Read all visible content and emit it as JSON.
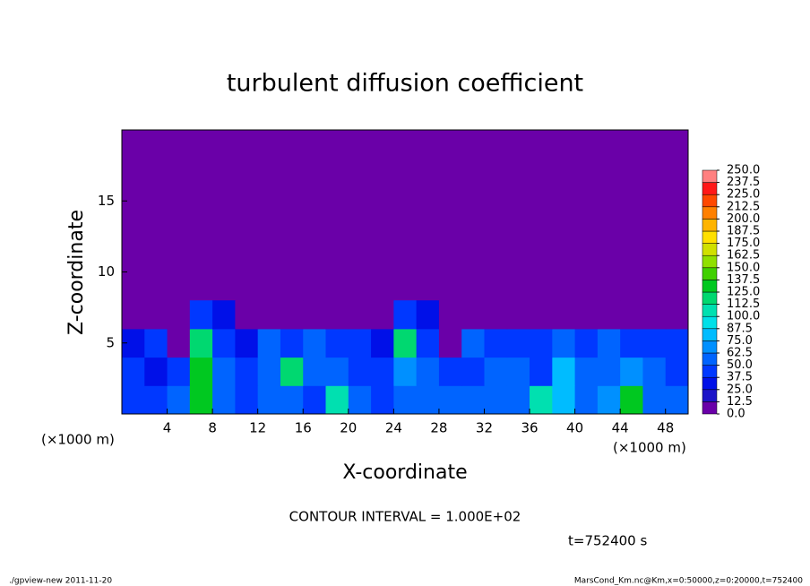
{
  "chart_data": {
    "type": "contour",
    "title": "turbulent diffusion coefficient",
    "x_label": "X-coordinate",
    "y_label": "Z-coordinate",
    "x_unit": "(×1000 m)",
    "contour_interval": "CONTOUR INTERVAL = 1.000E+02",
    "time_label": "t=752400 s",
    "footer_left": "./gpview-new  2011-11-20",
    "footer_right": "MarsCond_Km.nc@Km,x=0:50000,z=0:20000,t=752400",
    "xlim": [
      0,
      50
    ],
    "ylim": [
      0,
      20
    ],
    "xticks": [
      4,
      8,
      12,
      16,
      20,
      24,
      28,
      32,
      36,
      40,
      44,
      48
    ],
    "yticks": [
      5,
      10,
      15
    ],
    "levels": [
      {
        "value": 0,
        "label": "0.0"
      },
      {
        "value": 12.5,
        "label": "12.5"
      },
      {
        "value": 25,
        "label": "25.0"
      },
      {
        "value": 37.5,
        "label": "37.5"
      },
      {
        "value": 50,
        "label": "50.0"
      },
      {
        "value": 62.5,
        "label": "62.5"
      },
      {
        "value": 75,
        "label": "75.0"
      },
      {
        "value": 87.5,
        "label": "87.5"
      },
      {
        "value": 100,
        "label": "100.0"
      },
      {
        "value": 112.5,
        "label": "112.5"
      },
      {
        "value": 125,
        "label": "125.0"
      },
      {
        "value": 137.5,
        "label": "137.5"
      },
      {
        "value": 150,
        "label": "150.0"
      },
      {
        "value": 162.5,
        "label": "162.5"
      },
      {
        "value": 175,
        "label": "175.0"
      },
      {
        "value": 187.5,
        "label": "187.5"
      },
      {
        "value": 200,
        "label": "200.0"
      },
      {
        "value": 212.5,
        "label": "212.5"
      },
      {
        "value": 225,
        "label": "225.0"
      },
      {
        "value": 237.5,
        "label": "237.5"
      },
      {
        "value": 250,
        "label": "250.0"
      }
    ],
    "colors": [
      "#6a00a8",
      "#1c14c8",
      "#0010e8",
      "#0038ff",
      "#0064ff",
      "#0090ff",
      "#00bcff",
      "#00e0e8",
      "#00e0b0",
      "#00d870",
      "#00c820",
      "#40d000",
      "#90e000",
      "#d0e000",
      "#ffe000",
      "#ffb400",
      "#ff8000",
      "#ff4800",
      "#ff1818",
      "#ff8080"
    ],
    "field": {
      "xbins": [
        0,
        2,
        4,
        6,
        8,
        10,
        12,
        14,
        16,
        18,
        20,
        22,
        24,
        26,
        28,
        30,
        32,
        34,
        36,
        38,
        40,
        42,
        44,
        46,
        48,
        50
      ],
      "zbins": [
        0,
        2,
        4,
        6,
        8
      ],
      "values": [
        [
          45,
          40,
          50,
          130,
          60,
          45,
          50,
          55,
          40,
          110,
          50,
          45,
          55,
          50,
          50,
          55,
          50,
          60,
          110,
          75,
          60,
          70,
          130,
          55,
          50
        ],
        [
          40,
          35,
          45,
          125,
          55,
          40,
          60,
          120,
          50,
          55,
          45,
          45,
          70,
          60,
          40,
          45,
          55,
          50,
          45,
          75,
          55,
          60,
          70,
          50,
          45
        ],
        [
          30,
          45,
          10,
          120,
          45,
          30,
          50,
          40,
          50,
          40,
          45,
          35,
          120,
          40,
          10,
          50,
          45,
          45,
          40,
          50,
          40,
          55,
          45,
          40,
          40
        ],
        [
          0,
          0,
          0,
          40,
          30,
          0,
          0,
          0,
          0,
          0,
          0,
          0,
          40,
          30,
          0,
          0,
          0,
          0,
          0,
          0,
          0,
          0,
          0,
          0,
          0
        ]
      ]
    }
  }
}
